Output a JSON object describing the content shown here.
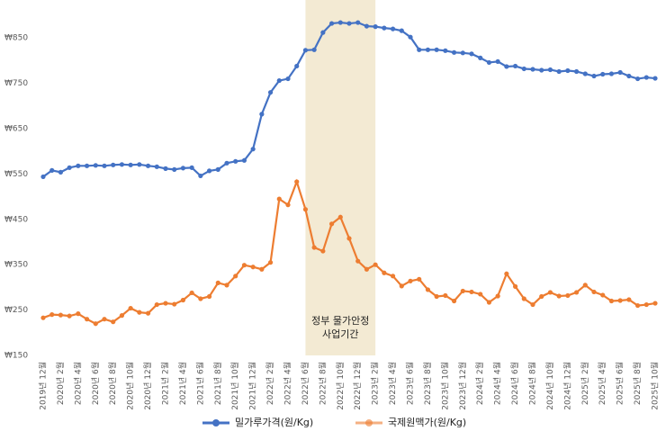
{
  "chart_data": {
    "type": "line",
    "categories": [
      "2019년 12월",
      null,
      "2020년 2월",
      null,
      "2020년 4월",
      null,
      "2020년 6월",
      null,
      "2020년 8월",
      null,
      "2020년 10월",
      null,
      "2020년 12월",
      null,
      "2021년 2월",
      null,
      "2021년 4월",
      null,
      "2021년 6월",
      null,
      "2021년 8월",
      null,
      "2021년 10월",
      null,
      "2021년 12월",
      null,
      "2022년 2월",
      null,
      "2022년 4월",
      null,
      "2022년 6월",
      null,
      "2022년 8월",
      null,
      "2022년 10월",
      null,
      "2022년 12월",
      null,
      "2023년 2월",
      null,
      "2023년 4월",
      null,
      "2023년 6월",
      null,
      "2023년 8월",
      null,
      "2023년 10월",
      null,
      "2023년 12월",
      null,
      "2024년 2월",
      null,
      "2024년 4월",
      null,
      "2024년 6월",
      null,
      "2024년 8월",
      null,
      "2024년 10월",
      null,
      "2024년 12월",
      null,
      "2025년 2월",
      null,
      "2025년 4월",
      null,
      "2025년 6월",
      null,
      "2025년 8월",
      null,
      "2025년 10월"
    ],
    "series": [
      {
        "name": "밀가루가격(원/Kg)",
        "color": "#4472c4",
        "values": [
          544,
          558,
          554,
          564,
          568,
          568,
          569,
          568,
          570,
          571,
          570,
          571,
          568,
          566,
          562,
          560,
          563,
          564,
          546,
          557,
          560,
          574,
          578,
          580,
          605,
          682,
          730,
          756,
          760,
          788,
          823,
          824,
          862,
          882,
          884,
          882,
          884,
          876,
          875,
          872,
          870,
          866,
          852,
          824,
          824,
          824,
          822,
          818,
          817,
          815,
          806,
          796,
          798,
          787,
          788,
          782,
          781,
          779,
          780,
          776,
          778,
          776,
          771,
          766,
          770,
          771,
          774,
          766,
          760,
          763,
          761
        ]
      },
      {
        "name": "국제원맥가(원/Kg)",
        "color": "#ed7d31",
        "values": [
          233,
          240,
          239,
          237,
          242,
          230,
          220,
          230,
          224,
          238,
          254,
          245,
          243,
          262,
          265,
          263,
          272,
          288,
          275,
          280,
          310,
          305,
          325,
          349,
          345,
          340,
          355,
          495,
          482,
          533,
          472,
          388,
          380,
          440,
          455,
          408,
          358,
          340,
          350,
          332,
          325,
          303,
          314,
          318,
          295,
          280,
          282,
          270,
          292,
          290,
          285,
          267,
          281,
          330,
          302,
          275,
          262,
          280,
          289,
          281,
          282,
          289,
          305,
          290,
          283,
          270,
          271,
          273,
          260,
          262,
          265
        ]
      }
    ],
    "ylim": [
      150,
      900
    ],
    "yticks": [
      {
        "value": 150,
        "label": "₩150"
      },
      {
        "value": 250,
        "label": "₩250"
      },
      {
        "value": 350,
        "label": "₩350"
      },
      {
        "value": 450,
        "label": "₩450"
      },
      {
        "value": 550,
        "label": "₩550"
      },
      {
        "value": 650,
        "label": "₩650"
      },
      {
        "value": 750,
        "label": "₩750"
      },
      {
        "value": 850,
        "label": "₩850"
      }
    ],
    "grid": false,
    "shaded_span": {
      "from": "2022년 6월",
      "to": "2023년 2월",
      "color": "#f3ead3",
      "annotation": [
        "정부 물가안정",
        "사업기간"
      ]
    },
    "legend": "bottom"
  }
}
